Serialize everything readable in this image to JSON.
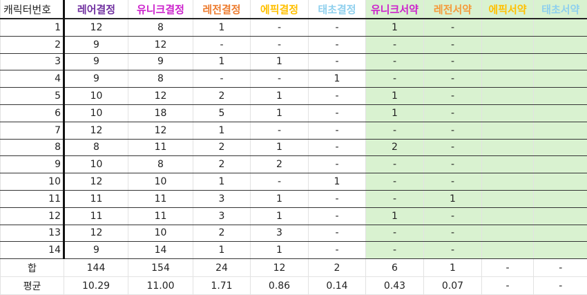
{
  "colors": {
    "green_fill": "#d9f2d0"
  },
  "headers": [
    {
      "label": "캐릭터번호",
      "color": "#222222"
    },
    {
      "label": "레어결정",
      "color": "#7030a0"
    },
    {
      "label": "유니크결정",
      "color": "#cc22cc"
    },
    {
      "label": "레전결정",
      "color": "#ed7d31"
    },
    {
      "label": "에픽결정",
      "color": "#ffc000"
    },
    {
      "label": "태초결정",
      "color": "#8fd0ee"
    },
    {
      "label": "유니크서약",
      "color": "#cc22cc"
    },
    {
      "label": "레전서약",
      "color": "#f59a3a"
    },
    {
      "label": "에픽서약",
      "color": "#ffc000"
    },
    {
      "label": "태초서약",
      "color": "#8fd0ee"
    }
  ],
  "rows": [
    [
      "1",
      "12",
      "8",
      "1",
      "-",
      "-",
      "1",
      "-",
      "",
      ""
    ],
    [
      "2",
      "9",
      "12",
      "-",
      "-",
      "-",
      "-",
      "-",
      "",
      ""
    ],
    [
      "3",
      "9",
      "9",
      "1",
      "1",
      "-",
      "-",
      "-",
      "",
      ""
    ],
    [
      "4",
      "9",
      "8",
      "-",
      "-",
      "1",
      "-",
      "-",
      "",
      ""
    ],
    [
      "5",
      "10",
      "12",
      "2",
      "1",
      "-",
      "1",
      "-",
      "",
      ""
    ],
    [
      "6",
      "10",
      "18",
      "5",
      "1",
      "-",
      "1",
      "-",
      "",
      ""
    ],
    [
      "7",
      "12",
      "12",
      "1",
      "-",
      "-",
      "-",
      "-",
      "",
      ""
    ],
    [
      "8",
      "8",
      "11",
      "2",
      "1",
      "-",
      "2",
      "-",
      "",
      ""
    ],
    [
      "9",
      "10",
      "8",
      "2",
      "2",
      "-",
      "-",
      "-",
      "",
      ""
    ],
    [
      "10",
      "12",
      "10",
      "1",
      "-",
      "1",
      "-",
      "-",
      "",
      ""
    ],
    [
      "11",
      "11",
      "11",
      "3",
      "1",
      "-",
      "-",
      "1",
      "",
      ""
    ],
    [
      "12",
      "11",
      "11",
      "3",
      "1",
      "-",
      "1",
      "-",
      "",
      ""
    ],
    [
      "13",
      "12",
      "10",
      "2",
      "3",
      "-",
      "-",
      "-",
      "",
      ""
    ],
    [
      "14",
      "9",
      "14",
      "1",
      "1",
      "-",
      "-",
      "-",
      "",
      ""
    ]
  ],
  "footer": [
    [
      "합",
      "144",
      "154",
      "24",
      "12",
      "2",
      "6",
      "1",
      "-",
      "-"
    ],
    [
      "평균",
      "10.29",
      "11.00",
      "1.71",
      "0.86",
      "0.14",
      "0.43",
      "0.07",
      "-",
      "-"
    ]
  ]
}
